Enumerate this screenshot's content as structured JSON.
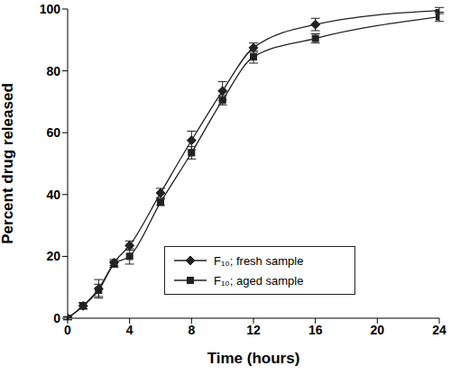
{
  "chart_data": {
    "type": "line",
    "x_label": "Time (hours)",
    "y_label": "Percent drug released",
    "x": [
      0,
      1,
      2,
      3,
      4,
      6,
      8,
      10,
      12,
      16,
      24
    ],
    "series": [
      {
        "name": "F₁₀; fresh sample",
        "color": "#222222",
        "marker": "diamond",
        "line_style": "solid",
        "values": [
          0,
          4,
          9.5,
          18,
          23.5,
          40.5,
          57.5,
          73.5,
          87.5,
          95,
          99.5
        ],
        "error": [
          0.5,
          1,
          3,
          1,
          1.5,
          1.5,
          3,
          3,
          1.5,
          2,
          1
        ]
      },
      {
        "name": "F₁₀; aged sample",
        "color": "#222222",
        "marker": "square",
        "line_style": "solid",
        "values": [
          0,
          4,
          9,
          17.5,
          20,
          37.5,
          53.5,
          70.5,
          84.5,
          90.5,
          97.5
        ],
        "error": [
          0.5,
          1,
          2,
          1,
          2.5,
          1,
          2,
          1.5,
          2,
          1.5,
          1.5
        ]
      }
    ],
    "xlim": [
      0,
      24
    ],
    "xticks": [
      0,
      4,
      8,
      12,
      16,
      20,
      24
    ],
    "ylim": [
      0,
      100
    ],
    "yticks": [
      0,
      20,
      40,
      60,
      80,
      100
    ],
    "grid": false,
    "legend": "lower center"
  }
}
